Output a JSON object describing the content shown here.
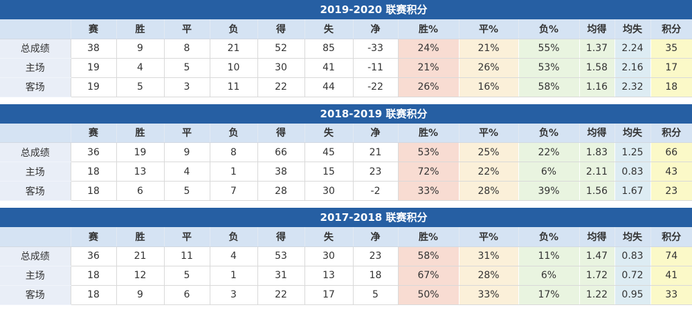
{
  "colors": {
    "title_bar": "#265fa3",
    "title_text": "#ffffff",
    "header_bg": "#d5e3f3",
    "label_bg": "#e9eef7",
    "cell_bg": "#ffffff",
    "win_pct_bg": "#f8dcd2",
    "draw_pct_bg": "#fbf0d9",
    "loss_pct_bg": "#e9f4e0",
    "avg_for_bg": "#e9f4e0",
    "avg_against_bg": "#ddecf3",
    "points_bg": "#fbf9c8",
    "border": "#d9d9d9",
    "text": "#333333"
  },
  "columns": [
    "",
    "赛",
    "胜",
    "平",
    "负",
    "得",
    "失",
    "净",
    "胜%",
    "平%",
    "负%",
    "均得",
    "均失",
    "积分"
  ],
  "column_widths_pct": [
    10.2,
    6.6,
    6.9,
    6.6,
    6.9,
    6.8,
    7.0,
    6.5,
    8.8,
    8.6,
    8.8,
    5.1,
    5.2,
    6.0
  ],
  "tables": [
    {
      "title": "2019-2020 联赛积分",
      "rows": [
        {
          "label": "总成绩",
          "values": [
            "38",
            "9",
            "8",
            "21",
            "52",
            "85",
            "-33",
            "24%",
            "21%",
            "55%",
            "1.37",
            "2.24",
            "35"
          ]
        },
        {
          "label": "主场",
          "values": [
            "19",
            "4",
            "5",
            "10",
            "30",
            "41",
            "-11",
            "21%",
            "26%",
            "53%",
            "1.58",
            "2.16",
            "17"
          ]
        },
        {
          "label": "客场",
          "values": [
            "19",
            "5",
            "3",
            "11",
            "22",
            "44",
            "-22",
            "26%",
            "16%",
            "58%",
            "1.16",
            "2.32",
            "18"
          ]
        }
      ]
    },
    {
      "title": "2018-2019 联赛积分",
      "rows": [
        {
          "label": "总成绩",
          "values": [
            "36",
            "19",
            "9",
            "8",
            "66",
            "45",
            "21",
            "53%",
            "25%",
            "22%",
            "1.83",
            "1.25",
            "66"
          ]
        },
        {
          "label": "主场",
          "values": [
            "18",
            "13",
            "4",
            "1",
            "38",
            "15",
            "23",
            "72%",
            "22%",
            "6%",
            "2.11",
            "0.83",
            "43"
          ]
        },
        {
          "label": "客场",
          "values": [
            "18",
            "6",
            "5",
            "7",
            "28",
            "30",
            "-2",
            "33%",
            "28%",
            "39%",
            "1.56",
            "1.67",
            "23"
          ]
        }
      ]
    },
    {
      "title": "2017-2018 联赛积分",
      "rows": [
        {
          "label": "总成绩",
          "values": [
            "36",
            "21",
            "11",
            "4",
            "53",
            "30",
            "23",
            "58%",
            "31%",
            "11%",
            "1.47",
            "0.83",
            "74"
          ]
        },
        {
          "label": "主场",
          "values": [
            "18",
            "12",
            "5",
            "1",
            "31",
            "13",
            "18",
            "67%",
            "28%",
            "6%",
            "1.72",
            "0.72",
            "41"
          ]
        },
        {
          "label": "客场",
          "values": [
            "18",
            "9",
            "6",
            "3",
            "22",
            "17",
            "5",
            "50%",
            "33%",
            "17%",
            "1.22",
            "0.95",
            "33"
          ]
        }
      ]
    }
  ]
}
